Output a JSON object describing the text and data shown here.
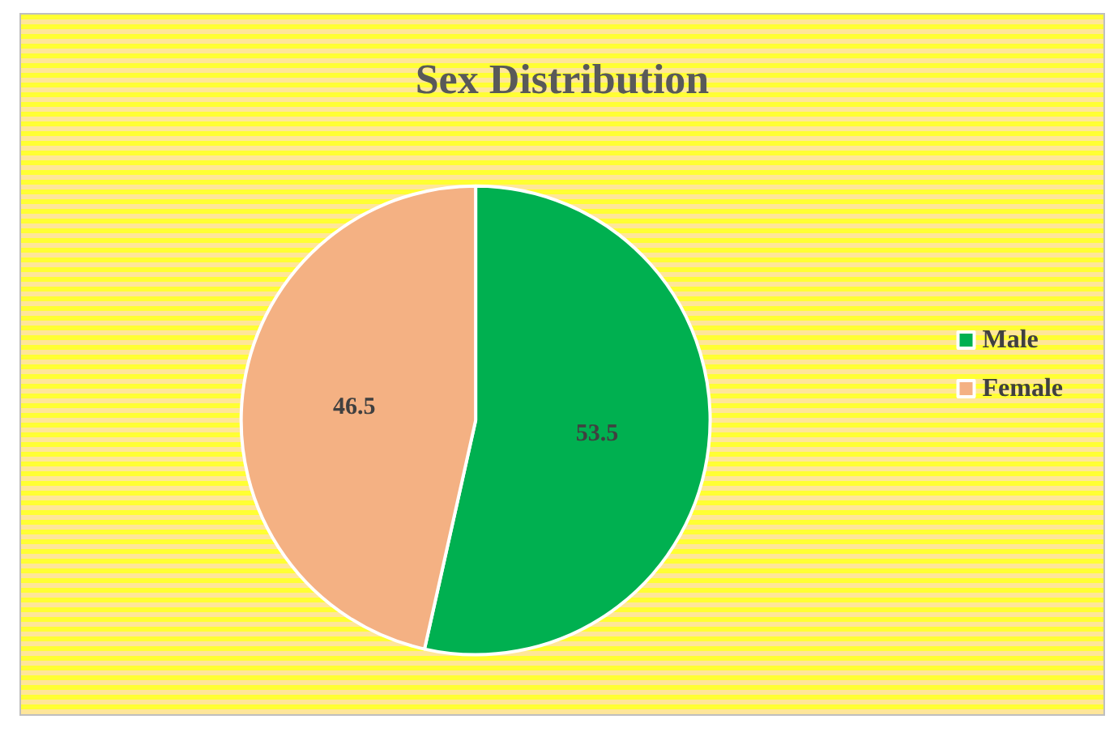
{
  "chart_data": {
    "type": "pie",
    "title": "Sex Distribution",
    "categories": [
      "Male",
      "Female"
    ],
    "values": [
      53.5,
      46.5
    ],
    "colors": [
      "#00b050",
      "#f4b183"
    ],
    "data_labels": true,
    "legend": "right"
  }
}
